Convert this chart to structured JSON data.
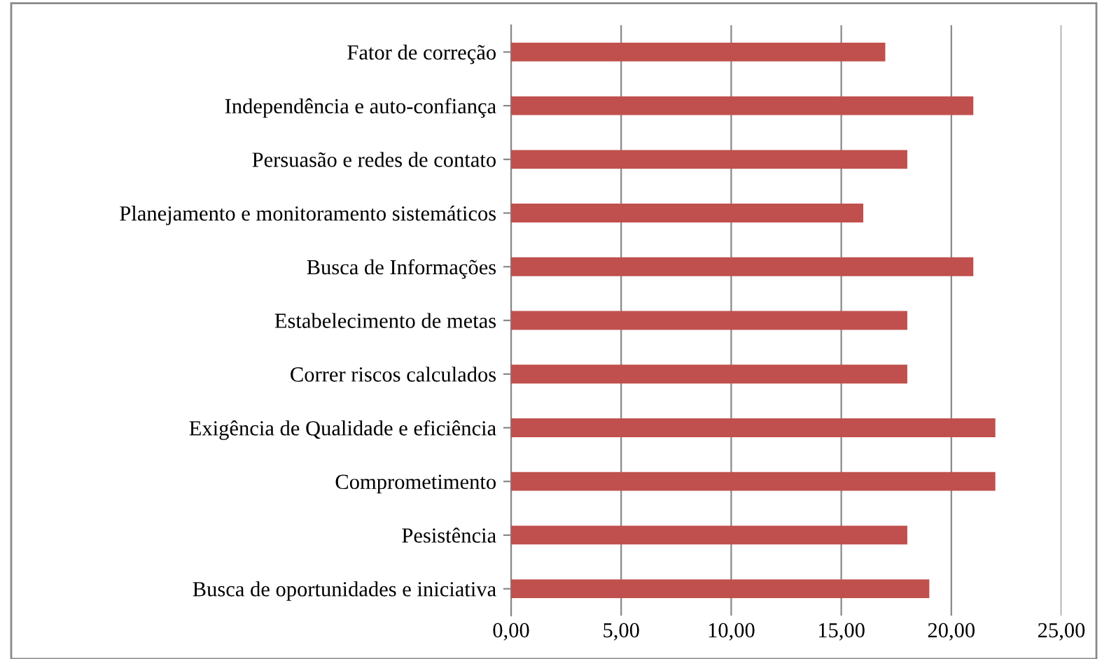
{
  "chart_data": {
    "type": "bar",
    "orientation": "horizontal",
    "categories": [
      "Fator de correção",
      "Independência e auto-confiança",
      "Persuasão e redes de contato",
      "Planejamento e monitoramento sistemáticos",
      "Busca de Informações",
      "Estabelecimento de metas",
      "Correr riscos calculados",
      "Exigência de Qualidade e eficiência",
      "Comprometimento",
      "Pesistência",
      "Busca de oportunidades e iniciativa"
    ],
    "values": [
      17,
      21,
      18,
      16,
      21,
      18,
      18,
      22,
      22,
      18,
      19
    ],
    "color": "#c0504d",
    "xlim": [
      0,
      25
    ],
    "xticks": [
      {
        "value": 0,
        "label": "0,00"
      },
      {
        "value": 5,
        "label": "5,00"
      },
      {
        "value": 10,
        "label": "10,00"
      },
      {
        "value": 15,
        "label": "15,00"
      },
      {
        "value": 20,
        "label": "20,00"
      },
      {
        "value": 25,
        "label": "25,00"
      }
    ],
    "grid": "x",
    "legend": false
  }
}
